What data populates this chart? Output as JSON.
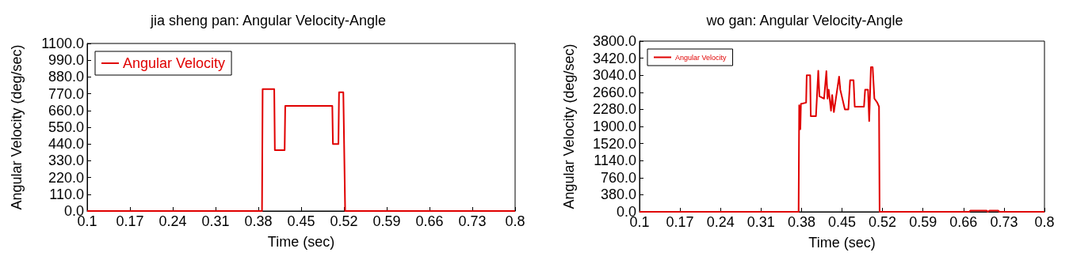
{
  "chart_data": [
    {
      "type": "line",
      "title": "jia sheng pan: Angular Velocity-Angle",
      "xlabel": "Time (sec)",
      "ylabel": "Angular Velocity (deg/sec)",
      "legend": "top left",
      "marker": "none",
      "line_style": "solid",
      "grid": false,
      "x": [
        0.1,
        0.386,
        0.387,
        0.406,
        0.407,
        0.423,
        0.424,
        0.501,
        0.502,
        0.511,
        0.512,
        0.519,
        0.522,
        0.8
      ],
      "series": [
        {
          "name": "Angular Velocity",
          "color": "#e00000",
          "values": [
            0,
            0,
            800,
            800,
            400,
            400,
            690,
            690,
            440,
            440,
            780,
            780,
            0,
            0
          ]
        }
      ],
      "xlim": [
        0.1,
        0.8
      ],
      "xticks": [
        0.1,
        0.17,
        0.24,
        0.31,
        0.38,
        0.45,
        0.52,
        0.59,
        0.66,
        0.73,
        0.8
      ],
      "ylim": [
        0,
        1100
      ],
      "yticks": [
        {
          "value": 0,
          "label": "0.0"
        },
        {
          "value": 110,
          "label": "110.0"
        },
        {
          "value": 220,
          "label": "220.0"
        },
        {
          "value": 330,
          "label": "330.0"
        },
        {
          "value": 440,
          "label": "440.0"
        },
        {
          "value": 550,
          "label": "550.0"
        },
        {
          "value": 660,
          "label": "660.0"
        },
        {
          "value": 770,
          "label": "770.0"
        },
        {
          "value": 880,
          "label": "880.0"
        },
        {
          "value": 990,
          "label": "990.0"
        },
        {
          "value": 1100,
          "label": "1100.0"
        }
      ]
    },
    {
      "type": "line",
      "title": "wo gan: Angular Velocity-Angle",
      "xlabel": "Time (sec)",
      "ylabel": "Angular Velocity (deg/sec)",
      "legend": "top left",
      "marker": "none",
      "line_style": "solid",
      "grid": false,
      "x": [
        0.1,
        0.375,
        0.376,
        0.378,
        0.379,
        0.388,
        0.389,
        0.395,
        0.396,
        0.405,
        0.409,
        0.411,
        0.419,
        0.423,
        0.425,
        0.427,
        0.431,
        0.433,
        0.436,
        0.445,
        0.447,
        0.455,
        0.461,
        0.464,
        0.47,
        0.472,
        0.488,
        0.49,
        0.495,
        0.497,
        0.5,
        0.503,
        0.506,
        0.511,
        0.514,
        0.515,
        0.67,
        0.672,
        0.7,
        0.702,
        0.705,
        0.72,
        0.722,
        0.8
      ],
      "series": [
        {
          "name": "Angular Velocity",
          "color": "#e00000",
          "values": [
            0,
            0,
            2370,
            1840,
            2400,
            2430,
            3040,
            3040,
            2130,
            2130,
            3140,
            2570,
            2520,
            3130,
            2520,
            2720,
            2250,
            2600,
            2220,
            3010,
            2720,
            2280,
            2280,
            2930,
            2930,
            2340,
            2340,
            2720,
            2720,
            2020,
            3220,
            3220,
            2520,
            2430,
            2340,
            0,
            0,
            25,
            25,
            0,
            25,
            25,
            0,
            0
          ]
        }
      ],
      "xlim": [
        0.1,
        0.8
      ],
      "xticks": [
        0.1,
        0.17,
        0.24,
        0.31,
        0.38,
        0.45,
        0.52,
        0.59,
        0.66,
        0.73,
        0.8
      ],
      "ylim": [
        0,
        3800
      ],
      "yticks": [
        {
          "value": 0,
          "label": "0.0"
        },
        {
          "value": 380,
          "label": "380.0"
        },
        {
          "value": 760,
          "label": "760.0"
        },
        {
          "value": 1140,
          "label": "1140.0"
        },
        {
          "value": 1520,
          "label": "1520.0"
        },
        {
          "value": 1900,
          "label": "1900.0"
        },
        {
          "value": 2280,
          "label": "2280.0"
        },
        {
          "value": 2660,
          "label": "2660.0"
        },
        {
          "value": 3040,
          "label": "3040.0"
        },
        {
          "value": 3420,
          "label": "3420.0"
        },
        {
          "value": 3800,
          "label": "3800.0"
        }
      ]
    }
  ]
}
